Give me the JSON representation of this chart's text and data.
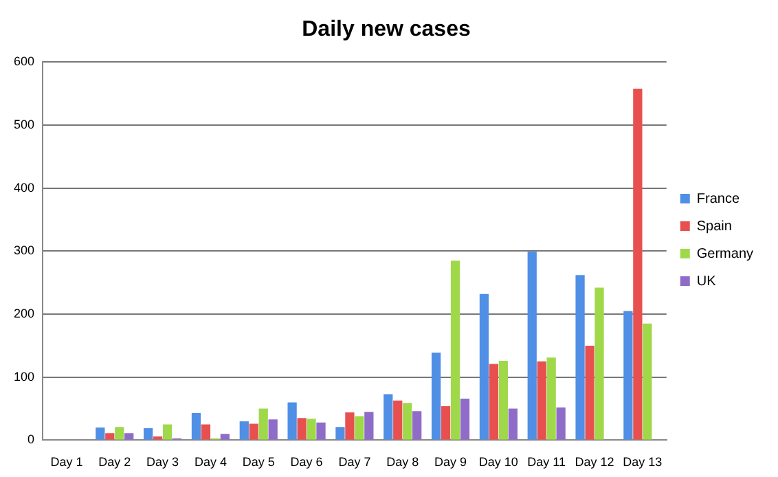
{
  "chart_data": {
    "type": "bar",
    "title": "Daily new cases",
    "categories": [
      "Day 1",
      "Day 2",
      "Day 3",
      "Day 4",
      "Day 5",
      "Day 6",
      "Day 7",
      "Day 8",
      "Day 9",
      "Day 10",
      "Day 11",
      "Day 12",
      "Day 13"
    ],
    "series": [
      {
        "name": "France",
        "color": "#4f8fe6",
        "values": [
          0,
          20,
          19,
          43,
          30,
          60,
          21,
          73,
          139,
          232,
          299,
          262,
          205
        ]
      },
      {
        "name": "Spain",
        "color": "#e85050",
        "values": [
          0,
          11,
          6,
          25,
          26,
          35,
          44,
          63,
          54,
          121,
          125,
          150,
          558
        ]
      },
      {
        "name": "Germany",
        "color": "#9fd94a",
        "values": [
          0,
          21,
          25,
          3,
          50,
          34,
          38,
          59,
          285,
          126,
          131,
          242,
          185
        ]
      },
      {
        "name": "UK",
        "color": "#8e6cc8",
        "values": [
          0,
          11,
          3,
          10,
          33,
          28,
          45,
          46,
          66,
          50,
          52,
          0,
          0
        ]
      }
    ],
    "ylim": [
      0,
      600
    ],
    "yticks": [
      0,
      100,
      200,
      300,
      400,
      500,
      600
    ],
    "grid": "y",
    "legend": "right"
  }
}
